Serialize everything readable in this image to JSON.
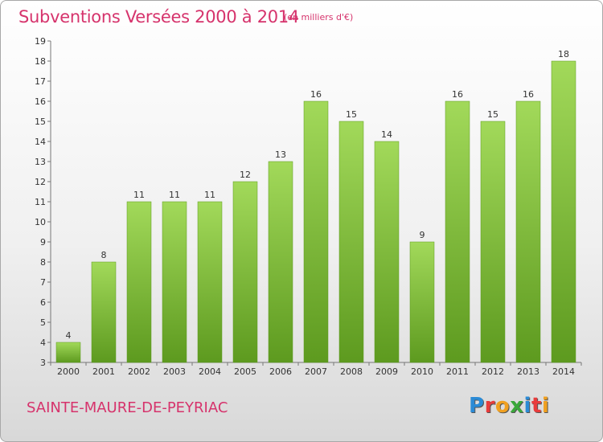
{
  "header": {
    "title": "Subventions Versées 2000 à 2014",
    "unit": "(en milliers d'€)"
  },
  "footer": {
    "commune": "SAINTE-MAURE-DE-PEYRIAC",
    "logo_text": "Proxiti",
    "logo_colors": [
      "#2b8bd6",
      "#e83c3c",
      "#f0a020",
      "#3aa83a",
      "#2b8bd6",
      "#e83c3c",
      "#f0a020"
    ]
  },
  "chart_data": {
    "type": "bar",
    "categories": [
      "2000",
      "2001",
      "2002",
      "2003",
      "2004",
      "2005",
      "2006",
      "2007",
      "2008",
      "2009",
      "2010",
      "2011",
      "2012",
      "2013",
      "2014"
    ],
    "values": [
      4,
      8,
      11,
      11,
      11,
      12,
      13,
      16,
      15,
      14,
      9,
      16,
      15,
      16,
      18
    ],
    "ylim": [
      3,
      19
    ],
    "yticks": [
      3,
      4,
      5,
      6,
      7,
      8,
      9,
      10,
      11,
      12,
      13,
      14,
      15,
      16,
      17,
      18,
      19
    ],
    "grid": false,
    "bar_color": "#7cc043",
    "bar_color_light": "#a2d95a",
    "bar_color_dark": "#5d9a1f"
  }
}
